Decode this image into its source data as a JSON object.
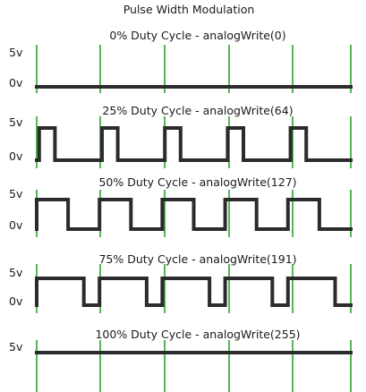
{
  "figure": {
    "title": "Pulse Width Modulation",
    "colors": {
      "signal": "#2b2b2b",
      "marker": "#1f9a1f",
      "text": "#1a1a1a",
      "background": "#ffffff"
    }
  },
  "chart_data": {
    "type": "line",
    "x_unit": "PWM period",
    "period_count": 5,
    "period_markers": [
      0,
      1,
      2,
      3,
      4,
      5
    ],
    "panels": [
      {
        "title": "0% Duty Cycle - analogWrite(0)",
        "high_label": "5v",
        "low_label": "0v",
        "duty_cycle": 0.0,
        "analog_write": 0,
        "phase": 0.0
      },
      {
        "title": "25% Duty Cycle - analogWrite(64)",
        "high_label": "5v",
        "low_label": "0v",
        "duty_cycle": 0.25,
        "analog_write": 64,
        "phase": 0.04
      },
      {
        "title": "50% Duty Cycle - analogWrite(127)",
        "high_label": "5v",
        "low_label": "0v",
        "duty_cycle": 0.5,
        "analog_write": 127,
        "phase": 0.0
      },
      {
        "title": "75% Duty Cycle - analogWrite(191)",
        "high_label": "5v",
        "low_label": "0v",
        "duty_cycle": 0.75,
        "analog_write": 191,
        "phase": 0.0
      },
      {
        "title": "100% Duty Cycle - analogWrite(255)",
        "high_label": "5v",
        "low_label": "",
        "duty_cycle": 1.0,
        "analog_write": 255,
        "phase": 0.0
      }
    ]
  }
}
